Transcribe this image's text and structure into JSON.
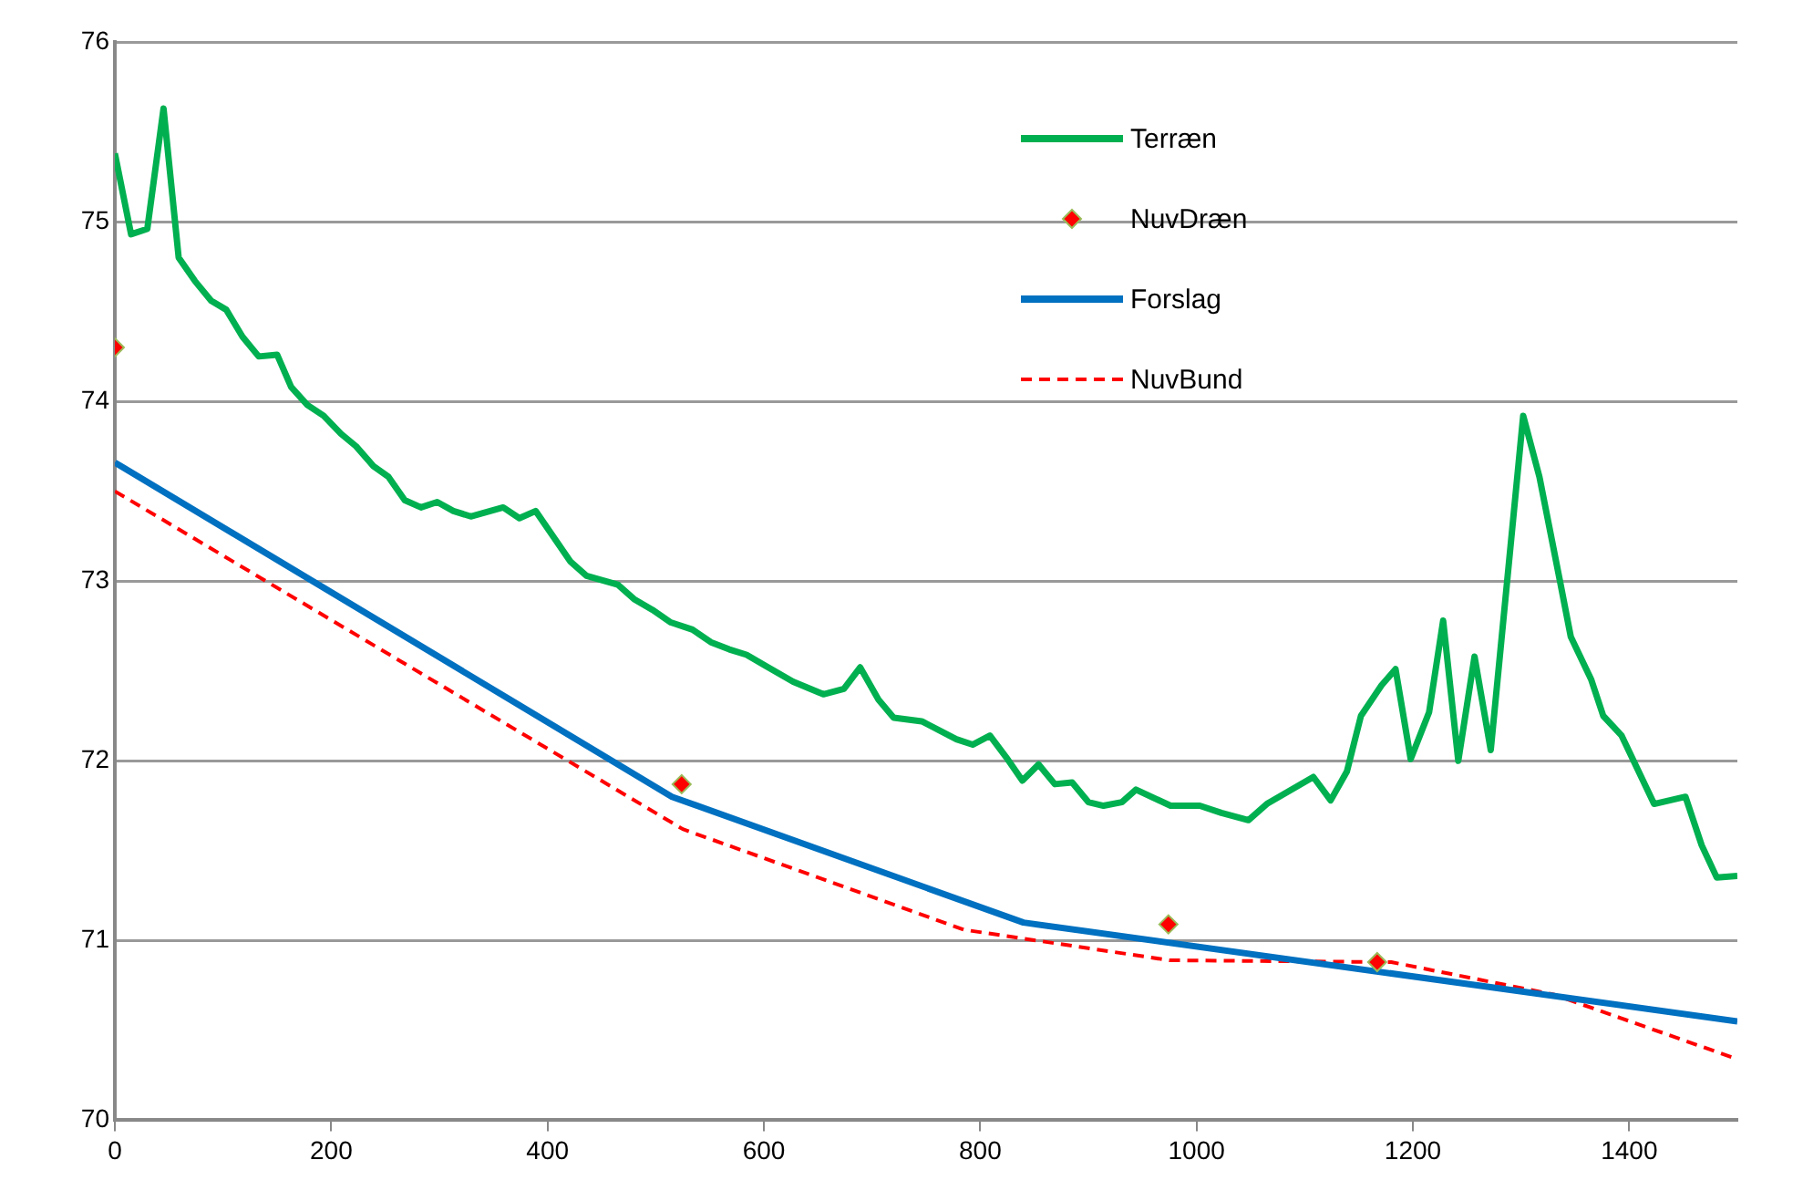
{
  "chart_data": {
    "type": "line",
    "xlim": [
      0,
      1500
    ],
    "xticks": [
      0,
      200,
      400,
      600,
      800,
      1000,
      1200,
      1400
    ],
    "ylim": [
      70,
      76
    ],
    "yticks": [
      70,
      71,
      72,
      73,
      74,
      75,
      76
    ],
    "grid": "y",
    "legend": "top right",
    "series": [
      {
        "name": "Terræn",
        "type": "line",
        "color": "#00b050",
        "x": [
          0,
          15,
          30,
          45,
          59,
          74,
          89,
          103,
          118,
          133,
          150,
          163,
          178,
          193,
          209,
          223,
          239,
          253,
          268,
          283,
          298,
          313,
          329,
          359,
          374,
          389,
          421,
          436,
          465,
          480,
          497,
          514,
          534,
          551,
          568,
          584,
          601,
          627,
          655,
          674,
          689,
          706,
          720,
          746,
          778,
          793,
          809,
          824,
          839,
          854,
          869,
          885,
          900,
          914,
          931,
          944,
          976,
          1003,
          1023,
          1048,
          1065,
          1108,
          1124,
          1139,
          1152,
          1171,
          1184,
          1198,
          1215,
          1228,
          1242,
          1257,
          1272,
          1302,
          1317,
          1336,
          1346,
          1365,
          1376,
          1393,
          1423,
          1452,
          1467,
          1481,
          1500
        ],
        "values": [
          75.38,
          74.93,
          74.96,
          75.63,
          74.8,
          74.67,
          74.56,
          74.51,
          74.36,
          74.25,
          74.26,
          74.08,
          73.98,
          73.92,
          73.82,
          73.75,
          73.64,
          73.58,
          73.45,
          73.41,
          73.44,
          73.39,
          73.36,
          73.41,
          73.35,
          73.39,
          73.11,
          73.03,
          72.98,
          72.9,
          72.84,
          72.77,
          72.73,
          72.66,
          72.62,
          72.59,
          72.53,
          72.44,
          72.37,
          72.4,
          72.52,
          72.34,
          72.24,
          72.22,
          72.12,
          72.09,
          72.14,
          72.02,
          71.89,
          71.98,
          71.87,
          71.88,
          71.77,
          71.75,
          71.77,
          71.84,
          71.75,
          71.75,
          71.71,
          71.67,
          71.76,
          71.91,
          71.78,
          71.94,
          72.25,
          72.42,
          72.51,
          72.01,
          72.27,
          72.78,
          72,
          72.58,
          72.06,
          73.92,
          73.58,
          73,
          72.69,
          72.45,
          72.25,
          72.14,
          71.76,
          71.8,
          71.53,
          71.35,
          71.36
        ]
      },
      {
        "name": "NuvDræn",
        "type": "scatter",
        "marker": "diamond",
        "color": "#ff0000",
        "x": [
          0,
          524,
          974,
          1167
        ],
        "values": [
          74.3,
          71.87,
          71.09,
          70.88
        ]
      },
      {
        "name": "Forslag",
        "type": "line",
        "color": "#0070c0",
        "x": [
          0,
          515,
          840,
          1500
        ],
        "values": [
          73.66,
          71.8,
          71.1,
          70.55
        ]
      },
      {
        "name": "NuvBund",
        "type": "line",
        "line_style": "dashed",
        "color": "#ff0000",
        "x": [
          0,
          525,
          785,
          975,
          1180,
          1330,
          1500
        ],
        "values": [
          73.5,
          71.62,
          71.06,
          70.89,
          70.88,
          70.7,
          70.34
        ]
      }
    ]
  }
}
